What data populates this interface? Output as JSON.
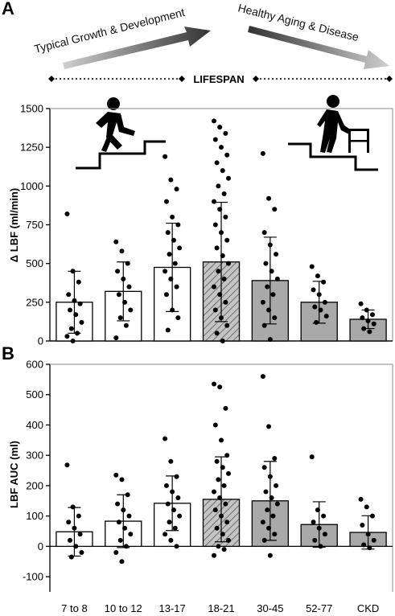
{
  "panel_labels": [
    "A",
    "B"
  ],
  "header": {
    "left_text": "Typical Growth & Development",
    "right_text": "Healthy Aging & Disease",
    "timeline_label": "LIFESPAN"
  },
  "icons": {
    "left": "person-climbing-stairs-icon",
    "right": "elderly-person-with-walker-descending-stairs-icon"
  },
  "colors": {
    "open_bar": "#ffffff",
    "gray_bar": "#a9a9a9",
    "hatched_bar": "#bbbbbb",
    "points": "#000000"
  },
  "chart_data": [
    {
      "type": "bar",
      "panel": "A",
      "categories": [
        "7 to 8",
        "10 to 12",
        "13-17",
        "18-21",
        "30-45",
        "52-77",
        "CKD"
      ],
      "bar_styles": [
        "open",
        "open",
        "open",
        "hatched",
        "gray",
        "gray",
        "gray"
      ],
      "values": [
        250,
        320,
        475,
        510,
        390,
        250,
        140
      ],
      "error_sd": [
        200,
        190,
        285,
        385,
        280,
        135,
        60
      ],
      "points": [
        [
          820,
          450,
          380,
          300,
          260,
          240,
          200,
          170,
          120,
          80,
          50,
          30,
          0
        ],
        [
          640,
          580,
          500,
          450,
          400,
          350,
          300,
          250,
          200,
          150,
          100,
          20
        ],
        [
          1190,
          1040,
          980,
          900,
          800,
          750,
          700,
          650,
          600,
          560,
          500,
          450,
          400,
          350,
          300,
          200,
          150,
          70
        ],
        [
          1420,
          1380,
          1340,
          1300,
          1250,
          1200,
          1150,
          1100,
          1050,
          1000,
          950,
          900,
          850,
          800,
          750,
          700,
          650,
          600,
          550,
          500,
          450,
          400,
          350,
          300,
          250,
          200,
          150,
          100,
          50,
          0
        ],
        [
          1210,
          920,
          850,
          700,
          620,
          560,
          500,
          450,
          400,
          350,
          300,
          250,
          200,
          150,
          100,
          10
        ],
        [
          480,
          420,
          380,
          330,
          300,
          250,
          220,
          200,
          160,
          120
        ],
        [
          240,
          200,
          170,
          150,
          130,
          110,
          80,
          60
        ]
      ],
      "xlabel": "",
      "ylabel": "Δ LBF (ml/min)",
      "ylim": [
        0,
        1500
      ],
      "yticks": [
        0,
        250,
        500,
        750,
        1000,
        1250,
        1500
      ]
    },
    {
      "type": "bar",
      "panel": "B",
      "categories": [
        "7 to 8",
        "10 to 12",
        "13-17",
        "18-21",
        "30-45",
        "52-77",
        "CKD"
      ],
      "bar_styles": [
        "open",
        "open",
        "open",
        "hatched",
        "gray",
        "gray",
        "gray"
      ],
      "values": [
        48,
        83,
        142,
        155,
        150,
        72,
        46
      ],
      "error_sd": [
        80,
        87,
        90,
        140,
        130,
        75,
        55
      ],
      "points": [
        [
          268,
          130,
          100,
          80,
          60,
          40,
          20,
          0,
          -20,
          -35
        ],
        [
          235,
          220,
          170,
          140,
          120,
          100,
          80,
          60,
          40,
          20,
          0,
          -20,
          -50
        ],
        [
          355,
          280,
          230,
          200,
          180,
          160,
          140,
          120,
          100,
          80,
          60,
          40,
          20,
          0
        ],
        [
          535,
          525,
          455,
          400,
          350,
          300,
          280,
          260,
          240,
          220,
          200,
          180,
          160,
          140,
          120,
          100,
          80,
          60,
          40,
          20,
          0,
          -10,
          -30
        ],
        [
          560,
          395,
          290,
          260,
          230,
          200,
          180,
          160,
          140,
          120,
          100,
          80,
          60,
          40,
          20,
          -30
        ],
        [
          295,
          120,
          100,
          80,
          60,
          40,
          20,
          0
        ],
        [
          155,
          130,
          100,
          70,
          40,
          20,
          5,
          -5
        ]
      ],
      "xlabel": "",
      "ylabel": "LBF AUC (ml)",
      "ylim": [
        -150,
        600
      ],
      "yticks": [
        -100,
        0,
        100,
        200,
        300,
        400,
        500,
        600
      ]
    }
  ]
}
